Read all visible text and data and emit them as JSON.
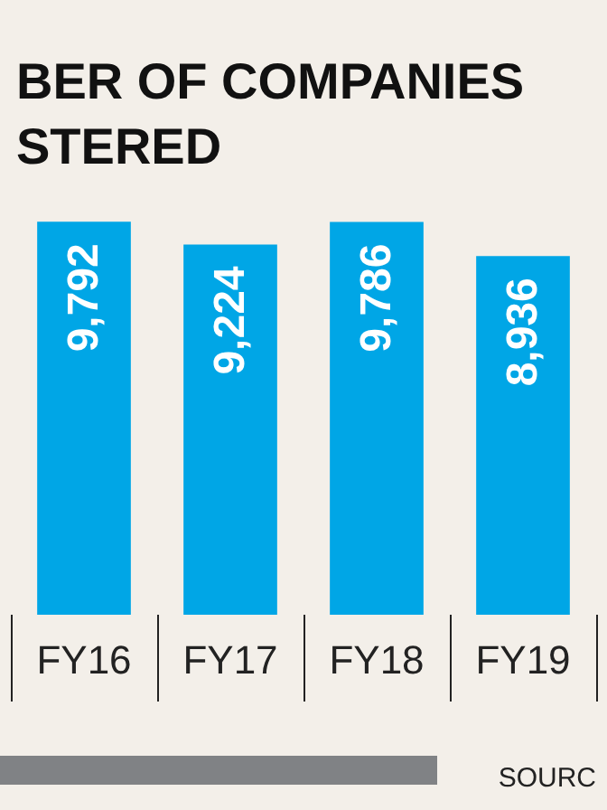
{
  "chart_data": {
    "type": "bar",
    "title": "BER OF COMPANIES\nSTERED",
    "categories": [
      "FY16",
      "FY17",
      "FY18",
      "FY19"
    ],
    "values": [
      9792,
      9224,
      9786,
      8936
    ],
    "color": "#00a6e6",
    "value_labels": [
      "9,792",
      "9,224",
      "9,786",
      "8,936"
    ],
    "annotations": [
      "SOURC"
    ]
  }
}
